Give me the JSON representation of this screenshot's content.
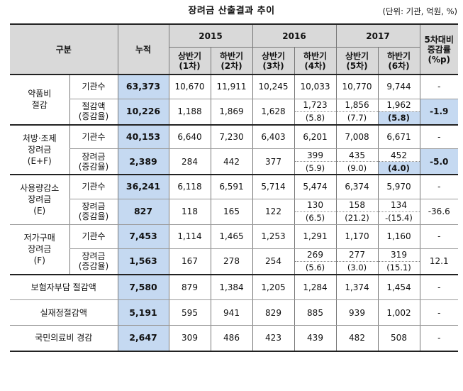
{
  "title": "장려금 산출결과 추이",
  "unit": "(단위: 기관, 억원, %)",
  "header": {
    "category": "구분",
    "cumulative": "누적",
    "years": [
      "2015",
      "2016",
      "2017"
    ],
    "periods": [
      {
        "l1": "상반기",
        "l2": "(1차)"
      },
      {
        "l1": "하반기",
        "l2": "(2차)"
      },
      {
        "l1": "상반기",
        "l2": "(3차)"
      },
      {
        "l1": "하반기",
        "l2": "(4차)"
      },
      {
        "l1": "상반기",
        "l2": "(5차)"
      },
      {
        "l1": "하반기",
        "l2": "(6차)"
      }
    ],
    "change_l1": "5차대비",
    "change_l2": "증감률",
    "change_l3": "(%p)"
  },
  "groups": [
    {
      "name_l1": "약품비",
      "name_l2": "절감",
      "name_l3": "",
      "row1": {
        "label": "기관수",
        "cum": "63,373",
        "vals": [
          "10,670",
          "11,911",
          "10,245",
          "10,033",
          "10,770",
          "9,744"
        ],
        "change": "-"
      },
      "row2": {
        "label_l1": "절감액",
        "label_l2": "(증감율)",
        "cum": "10,226",
        "vals": [
          "1,188",
          "1,869",
          "1,628",
          "1,723",
          "1,856",
          "1,962"
        ],
        "rates": [
          "(5.8)",
          "(7.7)",
          "(5.8)"
        ],
        "change": "-1.9"
      }
    },
    {
      "name_l1": "처방·조제",
      "name_l2": "장려금",
      "name_l3": "(E+F)",
      "row1": {
        "label": "기관수",
        "cum": "40,153",
        "vals": [
          "6,640",
          "7,230",
          "6,403",
          "6,201",
          "7,008",
          "6,671"
        ],
        "change": "-"
      },
      "row2": {
        "label_l1": "장려금",
        "label_l2": "(증감율)",
        "cum": "2,389",
        "vals": [
          "284",
          "442",
          "377",
          "399",
          "435",
          "452"
        ],
        "rates": [
          "(5.9)",
          "(9.0)",
          "(4.0)"
        ],
        "change": "-5.0"
      }
    },
    {
      "name_l1": "사용량감소",
      "name_l2": "장려금",
      "name_l3": "(E)",
      "row1": {
        "label": "기관수",
        "cum": "36,241",
        "vals": [
          "6,118",
          "6,591",
          "5,714",
          "5,474",
          "6,374",
          "5,970"
        ],
        "change": "-"
      },
      "row2": {
        "label_l1": "장려금",
        "label_l2": "(증감율)",
        "cum": "827",
        "vals": [
          "118",
          "165",
          "122",
          "130",
          "158",
          "134"
        ],
        "rates": [
          "(6.5)",
          "(21.2)",
          "-(15.4)"
        ],
        "change": "-36.6"
      }
    },
    {
      "name_l1": "저가구매",
      "name_l2": "장려금",
      "name_l3": "(F)",
      "row1": {
        "label": "기관수",
        "cum": "7,453",
        "vals": [
          "1,114",
          "1,465",
          "1,253",
          "1,291",
          "1,170",
          "1,160"
        ],
        "change": "-"
      },
      "row2": {
        "label_l1": "장려금",
        "label_l2": "(증감율)",
        "cum": "1,563",
        "vals": [
          "167",
          "278",
          "254",
          "269",
          "277",
          "319"
        ],
        "rates": [
          "(5.6)",
          "(3.0)",
          "(15.1)"
        ],
        "change": "12.1"
      }
    }
  ],
  "totals": [
    {
      "label": "보험자부담 절감액",
      "cum": "7,580",
      "vals": [
        "879",
        "1,384",
        "1,205",
        "1,284",
        "1,374",
        "1,454"
      ],
      "change": "-"
    },
    {
      "label": "실재정절감액",
      "cum": "5,191",
      "vals": [
        "595",
        "941",
        "829",
        "885",
        "939",
        "1,002"
      ],
      "change": "-"
    },
    {
      "label": "국민의료비 경감",
      "cum": "2,647",
      "vals": [
        "309",
        "486",
        "423",
        "439",
        "482",
        "508"
      ],
      "change": "-"
    }
  ]
}
